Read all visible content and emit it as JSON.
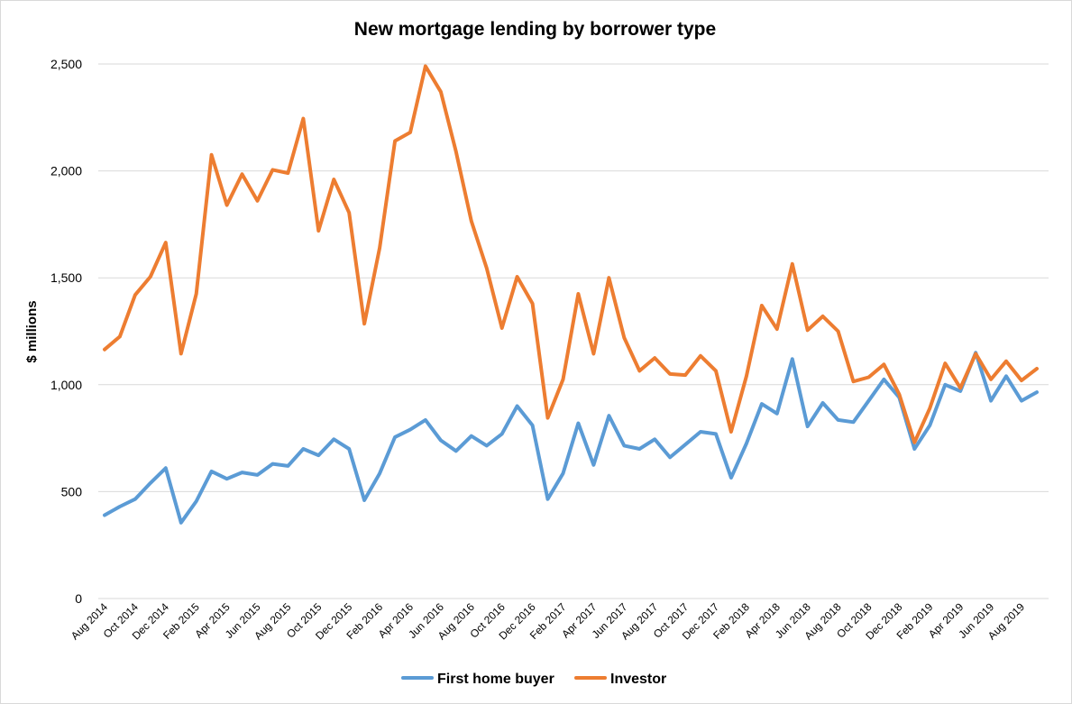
{
  "chart_data": {
    "type": "line",
    "title": "New mortgage lending by borrower type",
    "ylabel": "$ millions",
    "xlabel": "",
    "ylim": [
      0,
      2500
    ],
    "yticks": [
      0,
      500,
      1000,
      1500,
      2000,
      2500
    ],
    "ytick_labels": [
      "0",
      "500",
      "1,000",
      "1,500",
      "2,000",
      "2,500"
    ],
    "grid": true,
    "legend_position": "bottom",
    "x_tick_labels": [
      "Aug 2014",
      "Oct 2014",
      "Dec 2014",
      "Feb 2015",
      "Apr 2015",
      "Jun 2015",
      "Aug 2015",
      "Oct 2015",
      "Dec 2015",
      "Feb 2016",
      "Apr 2016",
      "Jun 2016",
      "Aug 2016",
      "Oct 2016",
      "Dec 2016",
      "Feb 2017",
      "Apr 2017",
      "Jun 2017",
      "Aug 2017",
      "Oct 2017",
      "Dec 2017",
      "Feb 2018",
      "Apr 2018",
      "Jun 2018",
      "Aug 2018",
      "Oct 2018",
      "Dec 2018",
      "Feb 2019",
      "Apr 2019",
      "Jun 2019",
      "Aug 2019"
    ],
    "x": [
      "Aug 2014",
      "Sep 2014",
      "Oct 2014",
      "Nov 2014",
      "Dec 2014",
      "Jan 2015",
      "Feb 2015",
      "Mar 2015",
      "Apr 2015",
      "May 2015",
      "Jun 2015",
      "Jul 2015",
      "Aug 2015",
      "Sep 2015",
      "Oct 2015",
      "Nov 2015",
      "Dec 2015",
      "Jan 2016",
      "Feb 2016",
      "Mar 2016",
      "Apr 2016",
      "May 2016",
      "Jun 2016",
      "Jul 2016",
      "Aug 2016",
      "Sep 2016",
      "Oct 2016",
      "Nov 2016",
      "Dec 2016",
      "Jan 2017",
      "Feb 2017",
      "Mar 2017",
      "Apr 2017",
      "May 2017",
      "Jun 2017",
      "Jul 2017",
      "Aug 2017",
      "Sep 2017",
      "Oct 2017",
      "Nov 2017",
      "Dec 2017",
      "Jan 2018",
      "Feb 2018",
      "Mar 2018",
      "Apr 2018",
      "May 2018",
      "Jun 2018",
      "Jul 2018",
      "Aug 2018",
      "Sep 2018",
      "Oct 2018",
      "Nov 2018",
      "Dec 2018",
      "Jan 2019",
      "Feb 2019",
      "Mar 2019",
      "Apr 2019",
      "May 2019",
      "Jun 2019",
      "Jul 2019",
      "Aug 2019",
      "Sep 2019"
    ],
    "series": [
      {
        "name": "First home buyer",
        "color": "#5b9bd5",
        "values": [
          390,
          430,
          465,
          540,
          610,
          355,
          455,
          595,
          560,
          590,
          578,
          630,
          620,
          700,
          670,
          745,
          700,
          460,
          585,
          755,
          790,
          835,
          740,
          690,
          760,
          715,
          770,
          900,
          810,
          465,
          585,
          820,
          625,
          855,
          715,
          700,
          745,
          660,
          720,
          780,
          770,
          565,
          725,
          910,
          865,
          1120,
          805,
          915,
          835,
          825,
          925,
          1025,
          940,
          700,
          810,
          1000,
          970,
          1150,
          925,
          1040,
          925,
          965
        ]
      },
      {
        "name": "Investor",
        "color": "#ed7d31",
        "values": [
          1165,
          1225,
          1420,
          1505,
          1665,
          1145,
          1425,
          2075,
          1840,
          1985,
          1860,
          2005,
          1990,
          2245,
          1720,
          1960,
          1805,
          1285,
          1640,
          2140,
          2180,
          2490,
          2370,
          2090,
          1765,
          1545,
          1265,
          1505,
          1380,
          845,
          1025,
          1425,
          1145,
          1500,
          1220,
          1065,
          1125,
          1050,
          1045,
          1135,
          1065,
          780,
          1040,
          1370,
          1260,
          1565,
          1255,
          1320,
          1250,
          1015,
          1035,
          1095,
          955,
          730,
          890,
          1100,
          985,
          1145,
          1025,
          1110,
          1020,
          1075
        ]
      }
    ]
  }
}
